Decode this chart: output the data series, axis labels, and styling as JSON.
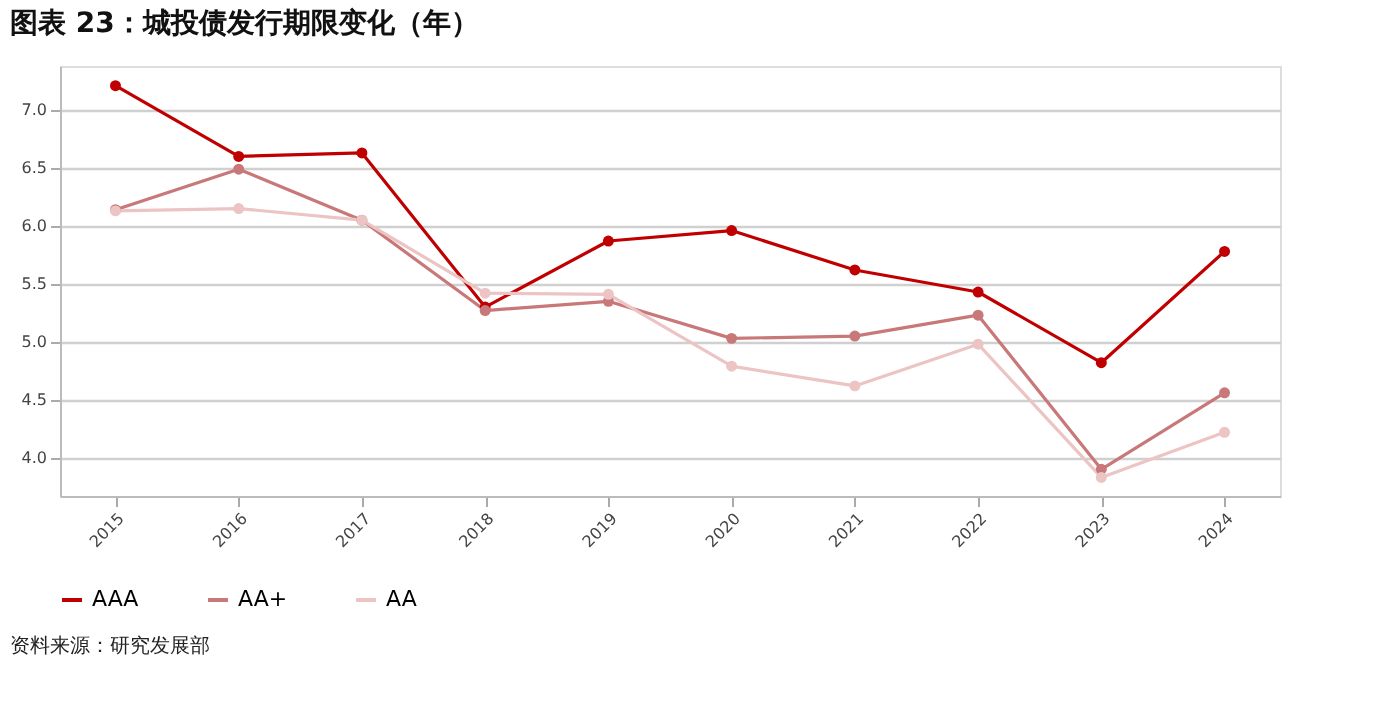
{
  "chart_data": {
    "type": "line",
    "title": "图表 23：城投债发行期限变化（年）",
    "categories": [
      "2015",
      "2016",
      "2017",
      "2018",
      "2019",
      "2020",
      "2021",
      "2022",
      "2023",
      "2024"
    ],
    "series": [
      {
        "name": "AAA",
        "color": "#c00000",
        "values": [
          7.21,
          6.6,
          6.63,
          5.3,
          5.87,
          5.96,
          5.62,
          5.43,
          4.82,
          5.78
        ]
      },
      {
        "name": "AA+",
        "color": "#c87878",
        "values": [
          6.14,
          6.49,
          6.05,
          5.27,
          5.35,
          5.03,
          5.05,
          5.23,
          3.9,
          4.56
        ]
      },
      {
        "name": "AA",
        "color": "#ecc4c4",
        "values": [
          6.13,
          6.15,
          6.05,
          5.42,
          5.41,
          4.79,
          4.62,
          4.98,
          3.83,
          4.22
        ]
      }
    ],
    "ylim": [
      3.67,
      7.38
    ],
    "yticks": [
      {
        "value": 4,
        "label": "4.0"
      },
      4.5,
      {
        "value": 5,
        "label": "5.0"
      },
      5.5,
      {
        "value": 6,
        "label": "6.0"
      },
      6.5,
      {
        "value": 7,
        "label": "7.0"
      }
    ],
    "grid": "y",
    "legend": "bottom",
    "marker": "circle",
    "line_style": "solid",
    "annotations": [
      "资料来源：研究发展部"
    ]
  }
}
